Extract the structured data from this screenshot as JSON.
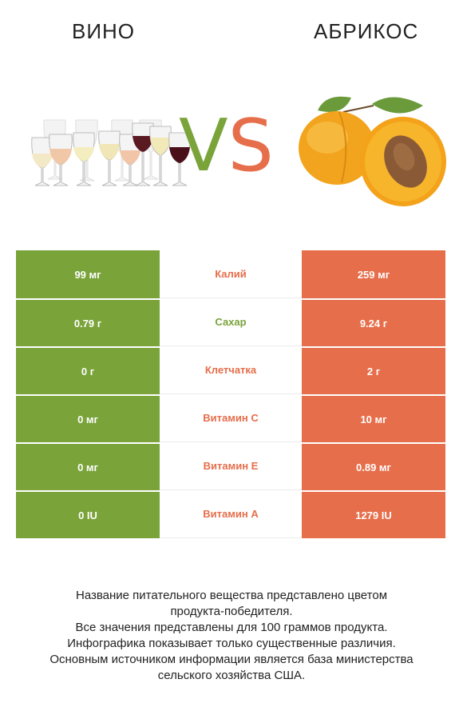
{
  "header": {
    "left_title": "ВИНО",
    "right_title": "АБРИКОС"
  },
  "vs": {
    "v": "V",
    "s": "S"
  },
  "colors": {
    "left": "#7aa33a",
    "right": "#e66e4b"
  },
  "rows": [
    {
      "left": "99 мг",
      "name": "Калий",
      "right": "259 мг",
      "winner": "right"
    },
    {
      "left": "0.79 г",
      "name": "Сахар",
      "right": "9.24 г",
      "winner": "left"
    },
    {
      "left": "0 г",
      "name": "Клетчатка",
      "right": "2 г",
      "winner": "right"
    },
    {
      "left": "0 мг",
      "name": "Витамин C",
      "right": "10 мг",
      "winner": "right"
    },
    {
      "left": "0 мг",
      "name": "Витамин E",
      "right": "0.89 мг",
      "winner": "right"
    },
    {
      "left": "0 IU",
      "name": "Витамин A",
      "right": "1279 IU",
      "winner": "right"
    }
  ],
  "footer": {
    "line1": "Название питательного вещества представлено цветом",
    "line2": "продукта-победителя.",
    "line3": "Все значения представлены для 100 граммов продукта.",
    "line4": "Инфографика показывает только существенные различия.",
    "line5": "Основным источником информации является база министерства",
    "line6": "сельского хозяйства США."
  }
}
